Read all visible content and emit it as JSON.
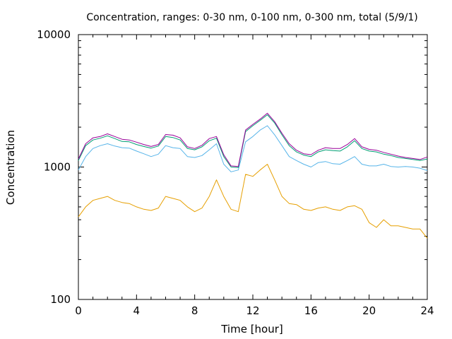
{
  "chart_data": {
    "type": "line",
    "title": "Concentration, ranges: 0-30 nm, 0-100 nm, 0-300 nm, total (5/9/1)",
    "xlabel": "Time [hour]",
    "ylabel": "Concentration",
    "xlim": [
      0,
      24
    ],
    "ylim": [
      100,
      10000
    ],
    "yscale": "log",
    "grid": false,
    "legend": "none",
    "x_ticks": [
      0,
      4,
      8,
      12,
      16,
      20,
      24
    ],
    "x_tick_labels": [
      "0",
      "4",
      "8",
      "12",
      "16",
      "20",
      "24"
    ],
    "y_ticks": [
      100,
      1000,
      10000
    ],
    "y_tick_labels": [
      "100",
      "1000",
      "10000"
    ],
    "x": [
      0,
      0.5,
      1,
      1.5,
      2,
      2.5,
      3,
      3.5,
      4,
      4.5,
      5,
      5.5,
      6,
      6.5,
      7,
      7.5,
      8,
      8.5,
      9,
      9.5,
      10,
      10.5,
      11,
      11.5,
      12,
      12.5,
      13,
      13.5,
      14,
      14.5,
      15,
      15.5,
      16,
      16.5,
      17,
      17.5,
      18,
      18.5,
      19,
      19.5,
      20,
      20.5,
      21,
      21.5,
      22,
      22.5,
      23,
      23.5,
      24
    ],
    "series": [
      {
        "color": "#e69f00",
        "values": [
          420,
          500,
          560,
          580,
          600,
          560,
          540,
          530,
          500,
          480,
          470,
          490,
          600,
          580,
          560,
          500,
          460,
          490,
          600,
          800,
          600,
          480,
          460,
          880,
          850,
          950,
          1050,
          800,
          600,
          530,
          520,
          480,
          470,
          490,
          500,
          480,
          470,
          500,
          510,
          480,
          380,
          350,
          400,
          360,
          360,
          350,
          340,
          340,
          290
        ]
      },
      {
        "color": "#56b4e9",
        "values": [
          950,
          1200,
          1380,
          1450,
          1500,
          1440,
          1400,
          1390,
          1320,
          1260,
          1200,
          1250,
          1450,
          1400,
          1380,
          1200,
          1180,
          1220,
          1350,
          1500,
          1050,
          920,
          950,
          1550,
          1700,
          1900,
          2050,
          1750,
          1450,
          1200,
          1120,
          1050,
          1000,
          1080,
          1100,
          1060,
          1050,
          1120,
          1200,
          1050,
          1020,
          1020,
          1050,
          1010,
          1000,
          1010,
          1000,
          980,
          940
        ]
      },
      {
        "color": "#009e73",
        "values": [
          1120,
          1450,
          1600,
          1650,
          1720,
          1640,
          1560,
          1550,
          1480,
          1430,
          1390,
          1440,
          1700,
          1670,
          1600,
          1380,
          1350,
          1420,
          1580,
          1650,
          1200,
          1000,
          990,
          1850,
          2050,
          2250,
          2480,
          2150,
          1750,
          1450,
          1300,
          1230,
          1200,
          1300,
          1350,
          1330,
          1320,
          1420,
          1580,
          1380,
          1320,
          1300,
          1250,
          1220,
          1180,
          1160,
          1140,
          1120,
          1150
        ]
      },
      {
        "color": "#990099",
        "values": [
          1150,
          1500,
          1660,
          1700,
          1780,
          1700,
          1620,
          1600,
          1540,
          1480,
          1430,
          1480,
          1760,
          1740,
          1660,
          1420,
          1380,
          1460,
          1640,
          1700,
          1240,
          1020,
          1010,
          1900,
          2100,
          2300,
          2550,
          2200,
          1800,
          1500,
          1340,
          1260,
          1240,
          1340,
          1400,
          1380,
          1380,
          1480,
          1640,
          1420,
          1360,
          1340,
          1290,
          1250,
          1210,
          1180,
          1160,
          1140,
          1190
        ]
      }
    ]
  }
}
